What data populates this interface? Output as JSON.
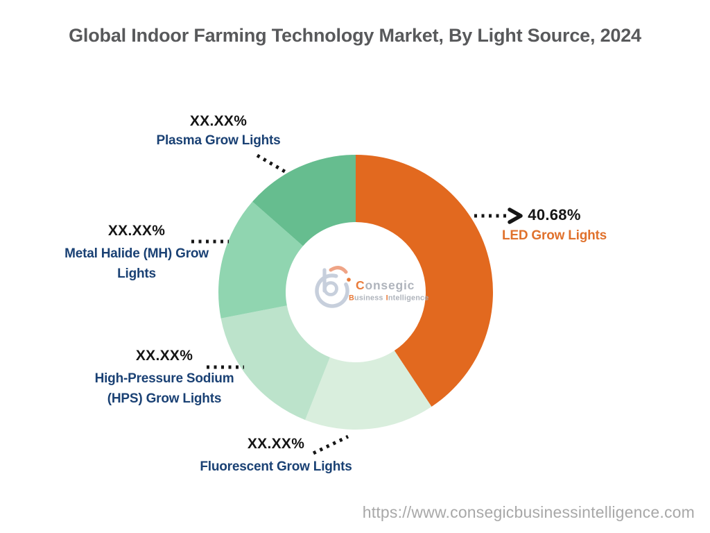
{
  "title": "Global Indoor Farming Technology Market, By Light Source, 2024",
  "footer": {
    "url": "https://www.consegicbusinessintelligence.com"
  },
  "watermark": {
    "brand_c": "C",
    "brand_rest": "onsegic",
    "sub_b": "B",
    "sub_b_rest": "usiness",
    "sub_i": "I",
    "sub_i_rest": "ntelligence"
  },
  "colors": {
    "led_orange": "#E2691F",
    "fluorescent_green": "#D9EEDD",
    "hps_green": "#BCE3CB",
    "metal_halide_green": "#90D5B0",
    "plasma_green": "#66BD8F",
    "label_navy": "#1A4174",
    "value_black": "#151515",
    "title_gray": "#58595B",
    "url_gray": "#A8A8A8",
    "connector_black": "#161616",
    "logo_blue_gray": "#C3CCDA",
    "logo_orange": "#E8702A",
    "logo_arc_salmon": "#EE9D7C",
    "logo_text_gray": "#A9AEB7"
  },
  "chart_data": {
    "type": "pie",
    "subtype": "donut",
    "title": "Global Indoor Farming Technology Market, By Light Source, 2024",
    "direction": "clockwise",
    "start_angle_deg": 0,
    "inner_radius_ratio": 0.51,
    "legend_position": "callouts",
    "segments": [
      {
        "id": "led-grow-lights",
        "label": "LED Grow Lights",
        "label_lines": [
          "LED Grow Lights"
        ],
        "value_label": "40.68%",
        "pct": 40.68,
        "masked": false,
        "color": "#E2691F"
      },
      {
        "id": "fluorescent-grow-lights",
        "label": "Fluorescent Grow Lights",
        "label_lines": [
          "Fluorescent Grow Lights"
        ],
        "value_label": "XX.XX%",
        "pct": 15.32,
        "masked": true,
        "color": "#D9EEDD"
      },
      {
        "id": "hps-grow-lights",
        "label": "High-Pressure Sodium (HPS) Grow Lights",
        "label_lines": [
          "High-Pressure Sodium",
          "(HPS) Grow Lights"
        ],
        "value_label": "XX.XX%",
        "pct": 15.95,
        "masked": true,
        "color": "#BCE3CB"
      },
      {
        "id": "metal-halide-grow-lights",
        "label": "Metal Halide (MH) Grow Lights",
        "label_lines": [
          "Metal Halide (MH) Grow",
          "Lights"
        ],
        "value_label": "XX.XX%",
        "pct": 14.5,
        "masked": true,
        "color": "#90D5B0"
      },
      {
        "id": "plasma-grow-lights",
        "label": "Plasma Grow Lights",
        "label_lines": [
          "Plasma Grow Lights"
        ],
        "value_label": "XX.XX%",
        "pct": 13.55,
        "masked": true,
        "color": "#66BD8F"
      }
    ]
  }
}
